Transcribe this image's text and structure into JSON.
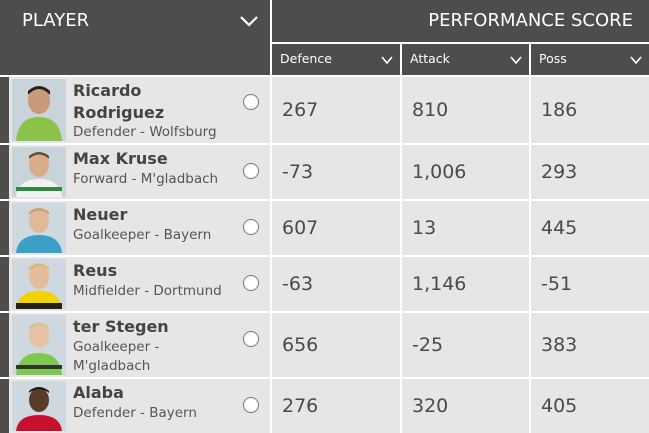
{
  "header": {
    "player_label": "PLAYER",
    "performance_label": "PERFORMANCE SCORE",
    "columns": [
      "Defence",
      "Attack",
      "Poss"
    ]
  },
  "rows": [
    {
      "name": "Ricardo Rodriguez",
      "name_line1": "Ricardo",
      "name_line2": "Rodriguez",
      "sub": "Defender - Wolfsburg",
      "defence": "267",
      "attack": "810",
      "poss": "186",
      "kit_color": "#8bc34a"
    },
    {
      "name": "Max Kruse",
      "sub": "Forward - M'gladbach",
      "defence": "-73",
      "attack": "1,006",
      "poss": "293",
      "kit_color": "#f2f2f2"
    },
    {
      "name": "Neuer",
      "sub": "Goalkeeper - Bayern",
      "defence": "607",
      "attack": "13",
      "poss": "445",
      "kit_color": "#3aa0c8"
    },
    {
      "name": "Reus",
      "sub": "Midfielder - Dortmund",
      "defence": "-63",
      "attack": "1,146",
      "poss": "-51",
      "kit_color": "#f2d200"
    },
    {
      "name": "ter Stegen",
      "sub_line1": "Goalkeeper -",
      "sub_line2": "M'gladbach",
      "defence": "656",
      "attack": "-25",
      "poss": "383",
      "kit_color": "#7ec850"
    },
    {
      "name": "Alaba",
      "sub": "Defender - Bayern",
      "defence": "276",
      "attack": "320",
      "poss": "405",
      "kit_color": "#c8102e"
    }
  ]
}
